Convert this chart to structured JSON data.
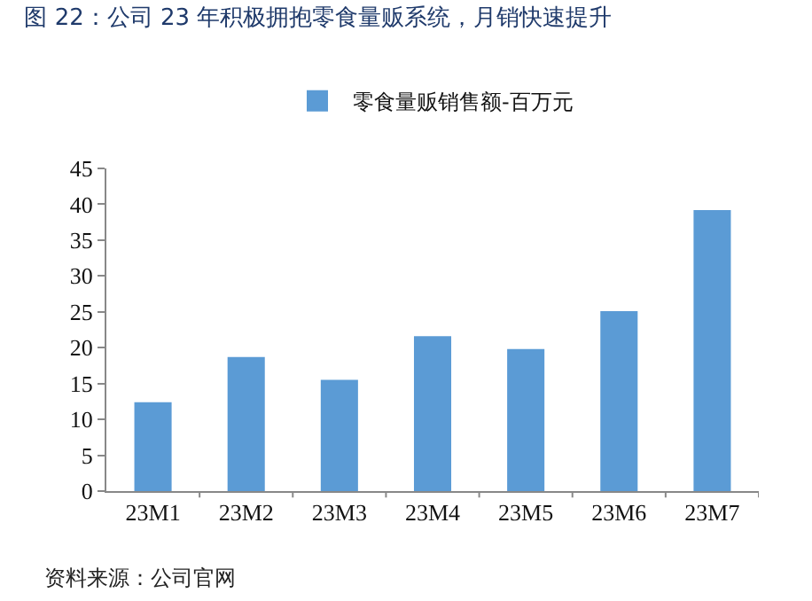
{
  "chart_data": {
    "type": "bar",
    "title": "图 22：公司 23 年积极拥抱零食量贩系统，月销快速提升",
    "categories": [
      "23M1",
      "23M2",
      "23M3",
      "23M4",
      "23M5",
      "23M6",
      "23M7"
    ],
    "series": [
      {
        "name": "零食量贩销售额-百万元",
        "color": "#5b9bd5",
        "values": [
          12.4,
          18.7,
          15.5,
          21.6,
          19.8,
          25.1,
          39.2
        ]
      }
    ],
    "ylim": [
      0,
      45
    ],
    "yticks": [
      0,
      5,
      10,
      15,
      20,
      25,
      30,
      35,
      40,
      45
    ],
    "grid": false,
    "legend": "top",
    "annotations": [
      "资料来源：公司官网"
    ]
  }
}
